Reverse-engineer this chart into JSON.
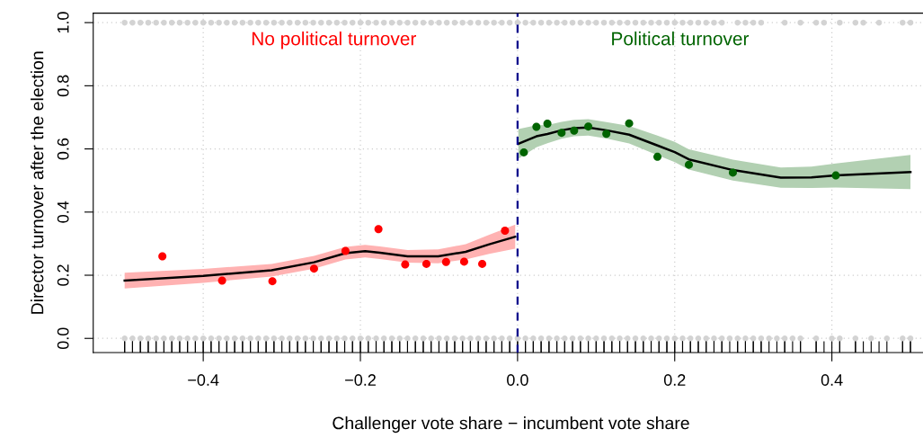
{
  "chart_data": {
    "type": "scatter",
    "xlabel": "Challenger vote share − incumbent vote share",
    "ylabel": "Director turnover after the election",
    "xlim": [
      -0.54,
      0.523
    ],
    "ylim": [
      -0.045,
      1.03
    ],
    "xticks": [
      {
        "value": -0.4,
        "label": "−0.4"
      },
      {
        "value": -0.2,
        "label": "−0.2"
      },
      {
        "value": 0,
        "label": "0.0"
      },
      {
        "value": 0.2,
        "label": "0.2"
      },
      {
        "value": 0.4,
        "label": "0.4"
      }
    ],
    "yticks": [
      {
        "value": 0,
        "label": "0.0"
      },
      {
        "value": 0.2,
        "label": "0.2"
      },
      {
        "value": 0.4,
        "label": "0.4"
      },
      {
        "value": 0.6,
        "label": "0.6"
      },
      {
        "value": 0.8,
        "label": "0.8"
      },
      {
        "value": 1,
        "label": "1.0"
      }
    ],
    "grid": true,
    "ref_lines": [
      {
        "axis": "x",
        "value": 0,
        "color": "#00008b",
        "line_style": "dashed"
      }
    ],
    "series": [
      {
        "marker": "circle",
        "color": "#d3d3d3",
        "x": [
          -0.5,
          -0.49,
          -0.48,
          -0.47,
          -0.46,
          -0.45,
          -0.44,
          -0.43,
          -0.42,
          -0.41,
          -0.4,
          -0.39,
          -0.38,
          -0.37,
          -0.36,
          -0.35,
          -0.34,
          -0.33,
          -0.32,
          -0.31,
          -0.3,
          -0.29,
          -0.28,
          -0.27,
          -0.26,
          -0.25,
          -0.24,
          -0.23,
          -0.22,
          -0.21,
          -0.2,
          -0.19,
          -0.18,
          -0.17,
          -0.16,
          -0.15,
          -0.14,
          -0.13,
          -0.12,
          -0.11,
          -0.1,
          -0.09,
          -0.08,
          -0.07,
          -0.06,
          -0.05,
          -0.04,
          -0.03,
          -0.02,
          -0.01,
          0,
          0.01,
          0.02,
          0.03,
          0.04,
          0.05,
          0.06,
          0.07,
          0.08,
          0.09,
          0.1,
          0.11,
          0.12,
          0.13,
          0.14,
          0.15,
          0.16,
          0.17,
          0.18,
          0.19,
          0.2,
          0.21,
          0.22,
          0.23,
          0.24,
          0.25,
          0.26,
          0.28,
          0.29,
          0.3,
          0.31,
          0.34,
          0.36,
          0.38,
          0.39,
          0.41,
          0.43,
          0.44,
          0.46,
          0.49,
          0.5
        ],
        "values": [
          1,
          1,
          1,
          1,
          1,
          1,
          1,
          1,
          1,
          1,
          1,
          1,
          1,
          1,
          1,
          1,
          1,
          1,
          1,
          1,
          1,
          1,
          1,
          1,
          1,
          1,
          1,
          1,
          1,
          1,
          1,
          1,
          1,
          1,
          1,
          1,
          1,
          1,
          1,
          1,
          1,
          1,
          1,
          1,
          1,
          1,
          1,
          1,
          1,
          1,
          1,
          1,
          1,
          1,
          1,
          1,
          1,
          1,
          1,
          1,
          1,
          1,
          1,
          1,
          1,
          1,
          1,
          1,
          1,
          1,
          1,
          1,
          1,
          1,
          1,
          1,
          1,
          1,
          1,
          1,
          1,
          1,
          1,
          1,
          1,
          1,
          1,
          1,
          1,
          1,
          1
        ]
      },
      {
        "marker": "circle",
        "color": "#d3d3d3",
        "x": [
          -0.5,
          -0.49,
          -0.48,
          -0.47,
          -0.46,
          -0.45,
          -0.44,
          -0.43,
          -0.42,
          -0.41,
          -0.4,
          -0.39,
          -0.38,
          -0.37,
          -0.36,
          -0.35,
          -0.34,
          -0.33,
          -0.32,
          -0.31,
          -0.3,
          -0.29,
          -0.28,
          -0.27,
          -0.26,
          -0.25,
          -0.24,
          -0.23,
          -0.22,
          -0.21,
          -0.2,
          -0.19,
          -0.18,
          -0.17,
          -0.16,
          -0.15,
          -0.14,
          -0.13,
          -0.12,
          -0.11,
          -0.1,
          -0.09,
          -0.08,
          -0.07,
          -0.06,
          -0.05,
          -0.04,
          -0.03,
          -0.02,
          -0.01,
          0,
          0.01,
          0.02,
          0.03,
          0.04,
          0.05,
          0.06,
          0.07,
          0.08,
          0.09,
          0.1,
          0.11,
          0.12,
          0.13,
          0.14,
          0.15,
          0.16,
          0.17,
          0.18,
          0.19,
          0.2,
          0.21,
          0.22,
          0.23,
          0.24,
          0.25,
          0.26,
          0.27,
          0.28,
          0.29,
          0.3,
          0.31,
          0.32,
          0.33,
          0.34,
          0.35,
          0.36,
          0.38,
          0.4,
          0.41,
          0.43,
          0.45,
          0.47,
          0.49,
          0.5
        ],
        "values": [
          0,
          0,
          0,
          0,
          0,
          0,
          0,
          0,
          0,
          0,
          0,
          0,
          0,
          0,
          0,
          0,
          0,
          0,
          0,
          0,
          0,
          0,
          0,
          0,
          0,
          0,
          0,
          0,
          0,
          0,
          0,
          0,
          0,
          0,
          0,
          0,
          0,
          0,
          0,
          0,
          0,
          0,
          0,
          0,
          0,
          0,
          0,
          0,
          0,
          0,
          0,
          0,
          0,
          0,
          0,
          0,
          0,
          0,
          0,
          0,
          0,
          0,
          0,
          0,
          0,
          0,
          0,
          0,
          0,
          0,
          0,
          0,
          0,
          0,
          0,
          0,
          0,
          0,
          0,
          0,
          0,
          0,
          0,
          0,
          0,
          0,
          0,
          0,
          0,
          0,
          0,
          0,
          0,
          0,
          0
        ]
      },
      {
        "type": "line",
        "color": "#000000",
        "x": [
          -0.5,
          -0.4,
          -0.313,
          -0.259,
          -0.219,
          -0.194,
          -0.175,
          -0.14,
          -0.101,
          -0.066,
          -0.036,
          -0.003
        ],
        "values": [
          0.183,
          0.198,
          0.216,
          0.241,
          0.27,
          0.276,
          0.271,
          0.26,
          0.26,
          0.274,
          0.298,
          0.322
        ],
        "lower": [
          0.158,
          0.176,
          0.196,
          0.221,
          0.25,
          0.256,
          0.251,
          0.24,
          0.238,
          0.25,
          0.268,
          0.284
        ],
        "upper": [
          0.208,
          0.22,
          0.236,
          0.261,
          0.29,
          0.296,
          0.291,
          0.28,
          0.282,
          0.298,
          0.328,
          0.36
        ]
      },
      {
        "type": "line",
        "color": "#000000",
        "x": [
          0.001,
          0.024,
          0.038,
          0.056,
          0.072,
          0.09,
          0.113,
          0.142,
          0.178,
          0.2,
          0.218,
          0.274,
          0.335,
          0.374,
          0.405,
          0.5
        ],
        "values": [
          0.616,
          0.64,
          0.647,
          0.659,
          0.666,
          0.668,
          0.659,
          0.645,
          0.611,
          0.59,
          0.567,
          0.533,
          0.509,
          0.51,
          0.516,
          0.527
        ],
        "lower": [
          0.569,
          0.605,
          0.618,
          0.632,
          0.64,
          0.642,
          0.633,
          0.617,
          0.58,
          0.558,
          0.535,
          0.5,
          0.477,
          0.476,
          0.478,
          0.473
        ],
        "upper": [
          0.663,
          0.675,
          0.676,
          0.686,
          0.692,
          0.694,
          0.685,
          0.673,
          0.642,
          0.622,
          0.599,
          0.566,
          0.541,
          0.544,
          0.554,
          0.581
        ]
      },
      {
        "marker": "circle",
        "name": "No political turnover",
        "color": "#ff0000",
        "x": [
          -0.452,
          -0.376,
          -0.312,
          -0.259,
          -0.219,
          -0.177,
          -0.143,
          -0.116,
          -0.091,
          -0.068,
          -0.045,
          -0.016
        ],
        "values": [
          0.26,
          0.183,
          0.181,
          0.221,
          0.277,
          0.346,
          0.234,
          0.236,
          0.242,
          0.243,
          0.236,
          0.341
        ]
      },
      {
        "marker": "circle",
        "name": "Political turnover",
        "color": "#006400",
        "x": [
          0.008,
          0.024,
          0.038,
          0.056,
          0.072,
          0.09,
          0.113,
          0.142,
          0.178,
          0.218,
          0.274,
          0.405
        ],
        "values": [
          0.589,
          0.67,
          0.68,
          0.651,
          0.658,
          0.671,
          0.648,
          0.681,
          0.575,
          0.55,
          0.525,
          0.516
        ]
      }
    ]
  }
}
